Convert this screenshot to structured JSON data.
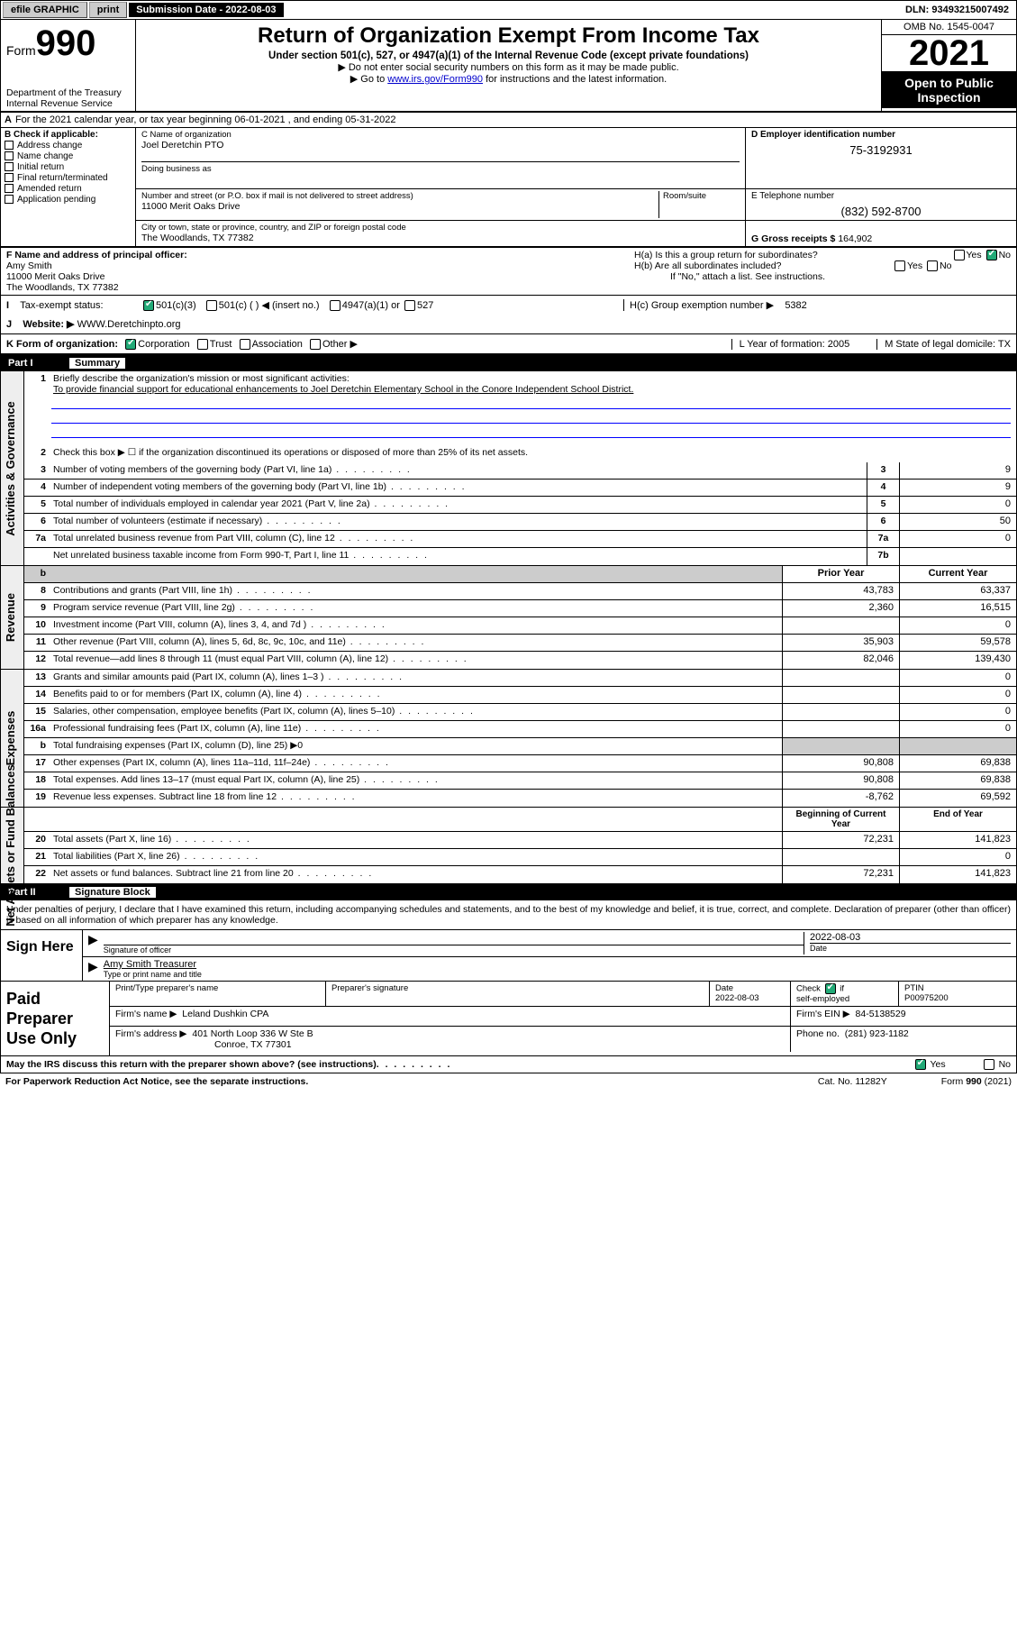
{
  "topbar": {
    "efile": "efile GRAPHIC",
    "print": "print",
    "submission": "Submission Date - 2022-08-03",
    "dln": "DLN: 93493215007492"
  },
  "header": {
    "form_label": "Form",
    "form_no": "990",
    "dept1": "Department of the Treasury",
    "dept2": "Internal Revenue Service",
    "title": "Return of Organization Exempt From Income Tax",
    "sub1": "Under section 501(c), 527, or 4947(a)(1) of the Internal Revenue Code (except private foundations)",
    "sub2": "Do not enter social security numbers on this form as it may be made public.",
    "sub3_pre": "Go to ",
    "sub3_link": "www.irs.gov/Form990",
    "sub3_post": " for instructions and the latest information.",
    "omb": "OMB No. 1545-0047",
    "year": "2021",
    "otp1": "Open to Public",
    "otp2": "Inspection"
  },
  "rowA": "For the 2021 calendar year, or tax year beginning 06-01-2021    , and ending 05-31-2022",
  "boxB": {
    "title": "B Check if applicable:",
    "items": [
      "Address change",
      "Name change",
      "Initial return",
      "Final return/terminated",
      "Amended return",
      "Application pending"
    ]
  },
  "boxC": {
    "lblC": "C Name of organization",
    "name": "Joel Deretchin PTO",
    "dba_lbl": "Doing business as",
    "addr_lbl": "Number and street (or P.O. box if mail is not delivered to street address)",
    "room_lbl": "Room/suite",
    "addr": "11000 Merit Oaks Drive",
    "city_lbl": "City or town, state or province, country, and ZIP or foreign postal code",
    "city": "The Woodlands, TX  77382"
  },
  "boxD": {
    "lbl": "D Employer identification number",
    "val": "75-3192931"
  },
  "boxE": {
    "lbl": "E Telephone number",
    "val": "(832) 592-8700"
  },
  "boxG": {
    "lbl": "G Gross receipts $",
    "val": "164,902"
  },
  "boxF": {
    "lbl": "F Name and address of principal officer:",
    "name": "Amy Smith",
    "addr1": "11000 Merit Oaks Drive",
    "addr2": "The Woodlands, TX  77382"
  },
  "boxH": {
    "a": "H(a)  Is this a group return for subordinates?",
    "b": "H(b)  Are all subordinates included?",
    "b2": "If \"No,\" attach a list. See instructions.",
    "c_lbl": "H(c)  Group exemption number ▶",
    "c_val": "5382",
    "yes": "Yes",
    "no": "No"
  },
  "rowI": {
    "lbl": "Tax-exempt status:",
    "o1": "501(c)(3)",
    "o2": "501(c) (  ) ◀ (insert no.)",
    "o3": "4947(a)(1) or",
    "o4": "527"
  },
  "rowJ": {
    "lbl": "Website: ▶",
    "val": "WWW.Deretchinpto.org"
  },
  "rowK": {
    "lbl": "K Form of organization:",
    "o1": "Corporation",
    "o2": "Trust",
    "o3": "Association",
    "o4": "Other ▶",
    "L": "L Year of formation: 2005",
    "M": "M State of legal domicile: TX"
  },
  "partI": {
    "hdr_pt": "Part I",
    "hdr_t": "Summary",
    "vlabels": [
      "Activities & Governance",
      "Revenue",
      "Expenses",
      "Net Assets or Fund Balances"
    ],
    "q1_lbl": "Briefly describe the organization's mission or most significant activities:",
    "q1_val": "To provide financial support for educational enhancements to Joel Deretchin Elementary School in the Conore Independent School District.",
    "q2": "Check this box ▶ ☐  if the organization discontinued its operations or disposed of more than 25% of its net assets.",
    "rows_gov": [
      {
        "n": "3",
        "t": "Number of voting members of the governing body (Part VI, line 1a)",
        "c": "3",
        "v": "9"
      },
      {
        "n": "4",
        "t": "Number of independent voting members of the governing body (Part VI, line 1b)",
        "c": "4",
        "v": "9"
      },
      {
        "n": "5",
        "t": "Total number of individuals employed in calendar year 2021 (Part V, line 2a)",
        "c": "5",
        "v": "0"
      },
      {
        "n": "6",
        "t": "Total number of volunteers (estimate if necessary)",
        "c": "6",
        "v": "50"
      },
      {
        "n": "7a",
        "t": "Total unrelated business revenue from Part VIII, column (C), line 12",
        "c": "7a",
        "v": "0"
      },
      {
        "n": "",
        "t": "Net unrelated business taxable income from Form 990-T, Part I, line 11",
        "c": "7b",
        "v": ""
      }
    ],
    "col_h1": "Prior Year",
    "col_h2": "Current Year",
    "rows_rev": [
      {
        "n": "8",
        "t": "Contributions and grants (Part VIII, line 1h)",
        "p": "43,783",
        "c": "63,337"
      },
      {
        "n": "9",
        "t": "Program service revenue (Part VIII, line 2g)",
        "p": "2,360",
        "c": "16,515"
      },
      {
        "n": "10",
        "t": "Investment income (Part VIII, column (A), lines 3, 4, and 7d )",
        "p": "",
        "c": "0"
      },
      {
        "n": "11",
        "t": "Other revenue (Part VIII, column (A), lines 5, 6d, 8c, 9c, 10c, and 11e)",
        "p": "35,903",
        "c": "59,578"
      },
      {
        "n": "12",
        "t": "Total revenue—add lines 8 through 11 (must equal Part VIII, column (A), line 12)",
        "p": "82,046",
        "c": "139,430"
      }
    ],
    "rows_exp": [
      {
        "n": "13",
        "t": "Grants and similar amounts paid (Part IX, column (A), lines 1–3 )",
        "p": "",
        "c": "0"
      },
      {
        "n": "14",
        "t": "Benefits paid to or for members (Part IX, column (A), line 4)",
        "p": "",
        "c": "0"
      },
      {
        "n": "15",
        "t": "Salaries, other compensation, employee benefits (Part IX, column (A), lines 5–10)",
        "p": "",
        "c": "0"
      },
      {
        "n": "16a",
        "t": "Professional fundraising fees (Part IX, column (A), line 11e)",
        "p": "",
        "c": "0"
      },
      {
        "n": "b",
        "t": "Total fundraising expenses (Part IX, column (D), line 25) ▶0",
        "p": "shade",
        "c": "shade"
      },
      {
        "n": "17",
        "t": "Other expenses (Part IX, column (A), lines 11a–11d, 11f–24e)",
        "p": "90,808",
        "c": "69,838"
      },
      {
        "n": "18",
        "t": "Total expenses. Add lines 13–17 (must equal Part IX, column (A), line 25)",
        "p": "90,808",
        "c": "69,838"
      },
      {
        "n": "19",
        "t": "Revenue less expenses. Subtract line 18 from line 12",
        "p": "-8,762",
        "c": "69,592"
      }
    ],
    "col_h3": "Beginning of Current Year",
    "col_h4": "End of Year",
    "rows_net": [
      {
        "n": "20",
        "t": "Total assets (Part X, line 16)",
        "p": "72,231",
        "c": "141,823"
      },
      {
        "n": "21",
        "t": "Total liabilities (Part X, line 26)",
        "p": "",
        "c": "0"
      },
      {
        "n": "22",
        "t": "Net assets or fund balances. Subtract line 21 from line 20",
        "p": "72,231",
        "c": "141,823"
      }
    ]
  },
  "partII": {
    "hdr_pt": "Part II",
    "hdr_t": "Signature Block",
    "decl": "Under penalties of perjury, I declare that I have examined this return, including accompanying schedules and statements, and to the best of my knowledge and belief, it is true, correct, and complete. Declaration of preparer (other than officer) is based on all information of which preparer has any knowledge.",
    "sign_here": "Sign Here",
    "sig_officer": "Signature of officer",
    "sig_date": "2022-08-03",
    "date_lbl": "Date",
    "officer_name": "Amy Smith Treasurer",
    "officer_lbl": "Type or print name and title",
    "paid": "Paid Preparer Use Only",
    "p_name_lbl": "Print/Type preparer's name",
    "p_sig_lbl": "Preparer's signature",
    "p_date_lbl": "Date",
    "p_date": "2022-08-03",
    "p_check": "Check ☑ if self-employed",
    "p_ptin_lbl": "PTIN",
    "p_ptin": "P00975200",
    "firm_name_lbl": "Firm's name    ▶",
    "firm_name": "Leland Dushkin CPA",
    "firm_ein_lbl": "Firm's EIN ▶",
    "firm_ein": "84-5138529",
    "firm_addr_lbl": "Firm's address ▶",
    "firm_addr1": "401 North Loop 336 W Ste B",
    "firm_addr2": "Conroe, TX  77301",
    "firm_phone_lbl": "Phone no.",
    "firm_phone": "(281) 923-1182",
    "discuss": "May the IRS discuss this return with the preparer shown above? (see instructions)"
  },
  "footer": {
    "pra": "For Paperwork Reduction Act Notice, see the separate instructions.",
    "cat": "Cat. No. 11282Y",
    "form": "Form 990 (2021)"
  }
}
